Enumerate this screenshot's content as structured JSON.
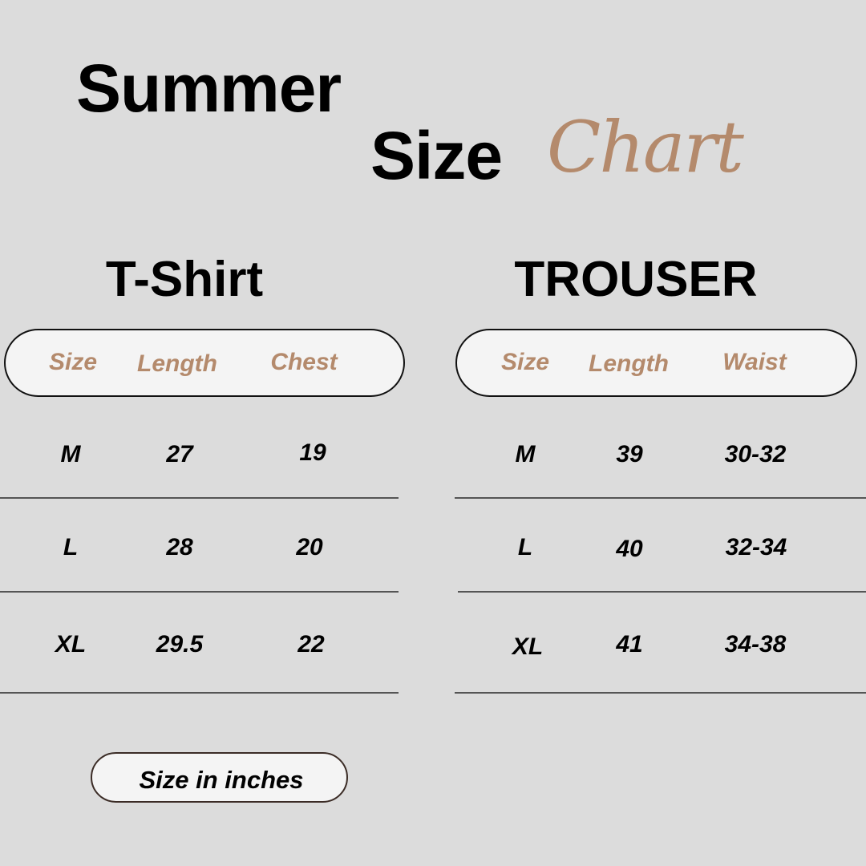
{
  "title": {
    "line1": "Summer",
    "line2": "Size",
    "script": "Chart"
  },
  "colors": {
    "background": "#dcdcdc",
    "accent": "#b48a6c",
    "pill": "#f4f4f4"
  },
  "tables": [
    {
      "title": "T-Shirt",
      "headers": [
        "Size",
        "Length",
        "Chest"
      ],
      "rows": [
        [
          "M",
          "27",
          "19"
        ],
        [
          "L",
          "28",
          "20"
        ],
        [
          "XL",
          "29.5",
          "22"
        ]
      ]
    },
    {
      "title": "TROUSER",
      "headers": [
        "Size",
        "Length",
        "Waist"
      ],
      "rows": [
        [
          "M",
          "39",
          "30-32"
        ],
        [
          "L",
          "40",
          "32-34"
        ],
        [
          "XL",
          "41",
          "34-38"
        ]
      ]
    }
  ],
  "note": "Size in inches"
}
